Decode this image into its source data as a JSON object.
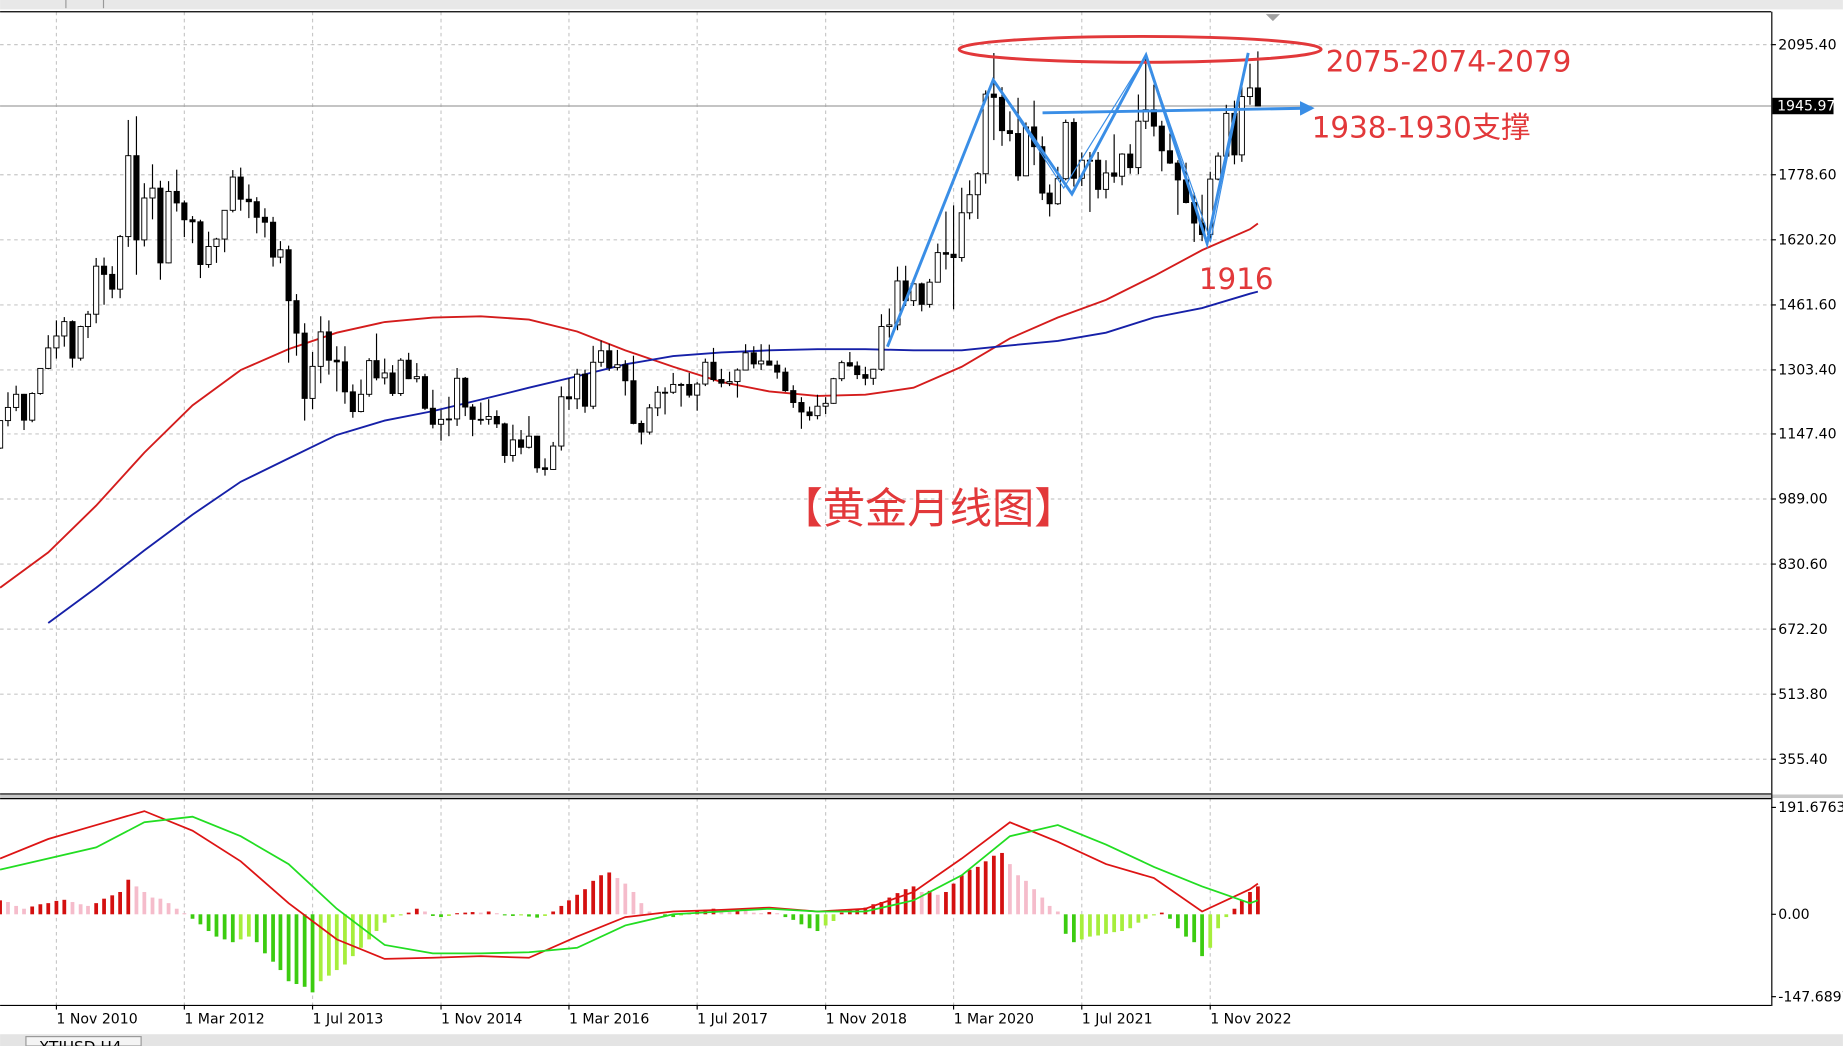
{
  "chart_data": {
    "type": "candlestick",
    "x": [
      "2010-04-01",
      "2010-05-01",
      "2010-06-01",
      "2010-07-01",
      "2010-08-01",
      "2010-09-01",
      "2010-10-01",
      "2010-11-01",
      "2010-12-01",
      "2011-01-01",
      "2011-02-01",
      "2011-03-01",
      "2011-04-01",
      "2011-05-01",
      "2011-06-01",
      "2011-07-01",
      "2011-08-01",
      "2011-09-01",
      "2011-10-01",
      "2011-11-01",
      "2011-12-01",
      "2012-01-01",
      "2012-02-01",
      "2012-03-01",
      "2012-04-01",
      "2012-05-01",
      "2012-06-01",
      "2012-07-01",
      "2012-08-01",
      "2012-09-01",
      "2012-10-01",
      "2012-11-01",
      "2012-12-01",
      "2013-01-01",
      "2013-02-01",
      "2013-03-01",
      "2013-04-01",
      "2013-05-01",
      "2013-06-01",
      "2013-07-01",
      "2013-08-01",
      "2013-09-01",
      "2013-10-01",
      "2013-11-01",
      "2013-12-01",
      "2014-01-01",
      "2014-02-01",
      "2014-03-01",
      "2014-04-01",
      "2014-05-01",
      "2014-06-01",
      "2014-07-01",
      "2014-08-01",
      "2014-09-01",
      "2014-10-01",
      "2014-11-01",
      "2014-12-01",
      "2015-01-01",
      "2015-02-01",
      "2015-03-01",
      "2015-04-01",
      "2015-05-01",
      "2015-06-01",
      "2015-07-01",
      "2015-08-01",
      "2015-09-01",
      "2015-10-01",
      "2015-11-01",
      "2015-12-01",
      "2016-01-01",
      "2016-02-01",
      "2016-03-01",
      "2016-04-01",
      "2016-05-01",
      "2016-06-01",
      "2016-07-01",
      "2016-08-01",
      "2016-09-01",
      "2016-10-01",
      "2016-11-01",
      "2016-12-01",
      "2017-01-01",
      "2017-02-01",
      "2017-03-01",
      "2017-04-01",
      "2017-05-01",
      "2017-06-01",
      "2017-07-01",
      "2017-08-01",
      "2017-09-01",
      "2017-10-01",
      "2017-11-01",
      "2017-12-01",
      "2018-01-01",
      "2018-02-01",
      "2018-03-01",
      "2018-04-01",
      "2018-05-01",
      "2018-06-01",
      "2018-07-01",
      "2018-08-01",
      "2018-09-01",
      "2018-10-01",
      "2018-11-01",
      "2018-12-01",
      "2019-01-01",
      "2019-02-01",
      "2019-03-01",
      "2019-04-01",
      "2019-05-01",
      "2019-06-01",
      "2019-07-01",
      "2019-08-01",
      "2019-09-01",
      "2019-10-01",
      "2019-11-01",
      "2019-12-01",
      "2020-01-01",
      "2020-02-01",
      "2020-03-01",
      "2020-04-01",
      "2020-05-01",
      "2020-06-01",
      "2020-07-01",
      "2020-08-01",
      "2020-09-01",
      "2020-10-01",
      "2020-11-01",
      "2020-12-01",
      "2021-01-01",
      "2021-02-01",
      "2021-03-01",
      "2021-04-01",
      "2021-05-01",
      "2021-06-01",
      "2021-07-01",
      "2021-08-01",
      "2021-09-01",
      "2021-10-01",
      "2021-11-01",
      "2021-12-01",
      "2022-01-01",
      "2022-02-01",
      "2022-03-01",
      "2022-04-01",
      "2022-05-01",
      "2022-06-01",
      "2022-07-01",
      "2022-08-01",
      "2022-09-01",
      "2022-10-01",
      "2022-11-01",
      "2022-12-01",
      "2023-01-01",
      "2023-02-01",
      "2023-03-01",
      "2023-04-01",
      "2023-05-01"
    ],
    "open": [
      1113,
      1180,
      1212,
      1244,
      1181,
      1246,
      1307,
      1357,
      1386,
      1421,
      1332,
      1409,
      1439,
      1556,
      1536,
      1500,
      1628,
      1825,
      1620,
      1722,
      1746,
      1564,
      1738,
      1710,
      1669,
      1664,
      1560,
      1604,
      1622,
      1692,
      1773,
      1719,
      1713,
      1675,
      1663,
      1578,
      1596,
      1472,
      1393,
      1234,
      1312,
      1396,
      1327,
      1323,
      1250,
      1202,
      1244,
      1326,
      1284,
      1296,
      1246,
      1327,
      1282,
      1287,
      1210,
      1171,
      1183,
      1184,
      1283,
      1213,
      1183,
      1183,
      1190,
      1172,
      1095,
      1133,
      1115,
      1142,
      1065,
      1061,
      1118,
      1238,
      1233,
      1293,
      1215,
      1322,
      1350,
      1309,
      1316,
      1277,
      1173,
      1152,
      1211,
      1249,
      1249,
      1268,
      1268,
      1242,
      1269,
      1322,
      1280,
      1271,
      1275,
      1303,
      1345,
      1318,
      1325,
      1315,
      1298,
      1253,
      1224,
      1201,
      1192,
      1215,
      1222,
      1282,
      1321,
      1313,
      1292,
      1283,
      1305,
      1409,
      1413,
      1520,
      1472,
      1513,
      1463,
      1517,
      1589,
      1585,
      1577,
      1686,
      1730,
      1781,
      1975,
      1967,
      1886,
      1879,
      1776,
      1895,
      1847,
      1734,
      1708,
      1769,
      1906,
      1770,
      1814,
      1814,
      1743,
      1783,
      1775,
      1829,
      1796,
      1909,
      1937,
      1897,
      1837,
      1807,
      1766,
      1711,
      1661,
      1633,
      1768,
      1824,
      1928,
      1827,
      1969,
      1990
    ],
    "high": [
      1180,
      1249,
      1265,
      1245,
      1249,
      1308,
      1388,
      1424,
      1432,
      1424,
      1411,
      1447,
      1576,
      1577,
      1556,
      1632,
      1912,
      1921,
      1758,
      1804,
      1764,
      1763,
      1791,
      1716,
      1678,
      1669,
      1640,
      1625,
      1692,
      1790,
      1796,
      1755,
      1724,
      1697,
      1676,
      1617,
      1606,
      1488,
      1417,
      1347,
      1434,
      1424,
      1361,
      1361,
      1268,
      1280,
      1332,
      1392,
      1331,
      1315,
      1332,
      1345,
      1320,
      1294,
      1255,
      1206,
      1238,
      1308,
      1286,
      1220,
      1224,
      1232,
      1205,
      1175,
      1170,
      1157,
      1191,
      1143,
      1088,
      1128,
      1263,
      1283,
      1306,
      1304,
      1362,
      1375,
      1367,
      1352,
      1327,
      1338,
      1180,
      1220,
      1264,
      1261,
      1296,
      1272,
      1296,
      1274,
      1331,
      1357,
      1306,
      1299,
      1307,
      1366,
      1361,
      1366,
      1365,
      1326,
      1309,
      1266,
      1237,
      1214,
      1243,
      1237,
      1284,
      1326,
      1347,
      1324,
      1311,
      1306,
      1439,
      1453,
      1555,
      1557,
      1517,
      1516,
      1525,
      1611,
      1689,
      1704,
      1747,
      1765,
      1785,
      1984,
      2075,
      1992,
      1933,
      1966,
      1906,
      1959,
      1872,
      1755,
      1798,
      1913,
      1916,
      1833,
      1834,
      1834,
      1814,
      1877,
      1831,
      1853,
      1974,
      2070,
      1998,
      1910,
      1879,
      1814,
      1808,
      1735,
      1730,
      1786,
      1833,
      1949,
      1959,
      2009,
      2049,
      2079
    ],
    "low": [
      1111,
      1166,
      1203,
      1157,
      1176,
      1243,
      1305,
      1331,
      1360,
      1309,
      1326,
      1381,
      1417,
      1462,
      1478,
      1478,
      1603,
      1535,
      1604,
      1670,
      1523,
      1563,
      1689,
      1627,
      1612,
      1527,
      1552,
      1564,
      1590,
      1687,
      1691,
      1673,
      1636,
      1626,
      1555,
      1563,
      1321,
      1338,
      1180,
      1208,
      1271,
      1292,
      1251,
      1221,
      1187,
      1200,
      1238,
      1278,
      1268,
      1240,
      1240,
      1281,
      1273,
      1206,
      1161,
      1131,
      1142,
      1167,
      1191,
      1142,
      1170,
      1170,
      1162,
      1077,
      1080,
      1098,
      1112,
      1053,
      1046,
      1060,
      1107,
      1206,
      1208,
      1199,
      1208,
      1311,
      1301,
      1302,
      1241,
      1171,
      1122,
      1146,
      1191,
      1195,
      1245,
      1214,
      1236,
      1204,
      1264,
      1275,
      1261,
      1264,
      1236,
      1302,
      1307,
      1303,
      1314,
      1282,
      1250,
      1211,
      1160,
      1180,
      1183,
      1196,
      1221,
      1276,
      1311,
      1281,
      1266,
      1267,
      1301,
      1382,
      1400,
      1459,
      1459,
      1446,
      1455,
      1517,
      1548,
      1451,
      1567,
      1670,
      1671,
      1757,
      1863,
      1849,
      1860,
      1764,
      1775,
      1802,
      1717,
      1677,
      1705,
      1765,
      1750,
      1751,
      1688,
      1721,
      1721,
      1759,
      1753,
      1781,
      1780,
      1890,
      1872,
      1787,
      1805,
      1681,
      1709,
      1615,
      1617,
      1616,
      1765,
      1823,
      1804,
      1810,
      1949,
      1945
    ],
    "close": [
      1180,
      1212,
      1244,
      1181,
      1246,
      1307,
      1357,
      1386,
      1421,
      1332,
      1409,
      1439,
      1556,
      1536,
      1500,
      1628,
      1825,
      1620,
      1722,
      1746,
      1564,
      1738,
      1710,
      1669,
      1664,
      1560,
      1604,
      1622,
      1692,
      1773,
      1719,
      1713,
      1675,
      1663,
      1578,
      1596,
      1472,
      1393,
      1234,
      1312,
      1396,
      1327,
      1323,
      1250,
      1202,
      1244,
      1326,
      1284,
      1296,
      1246,
      1327,
      1282,
      1287,
      1210,
      1171,
      1183,
      1184,
      1283,
      1213,
      1183,
      1183,
      1190,
      1172,
      1095,
      1133,
      1115,
      1142,
      1065,
      1061,
      1118,
      1238,
      1233,
      1293,
      1215,
      1322,
      1350,
      1309,
      1316,
      1277,
      1173,
      1152,
      1211,
      1249,
      1249,
      1268,
      1268,
      1242,
      1269,
      1322,
      1280,
      1271,
      1275,
      1303,
      1345,
      1318,
      1325,
      1315,
      1298,
      1253,
      1224,
      1201,
      1192,
      1215,
      1222,
      1282,
      1321,
      1313,
      1292,
      1283,
      1305,
      1409,
      1413,
      1520,
      1472,
      1513,
      1463,
      1517,
      1589,
      1585,
      1577,
      1686,
      1730,
      1781,
      1975,
      1967,
      1886,
      1879,
      1776,
      1895,
      1847,
      1734,
      1708,
      1769,
      1906,
      1770,
      1814,
      1814,
      1743,
      1783,
      1775,
      1829,
      1796,
      1909,
      1937,
      1897,
      1837,
      1807,
      1766,
      1711,
      1661,
      1633,
      1768,
      1824,
      1928,
      1827,
      1969,
      1990,
      1946
    ],
    "xlim": [
      "2010-04-01",
      "2028-09-01"
    ],
    "xticks": [
      {
        "value": "2010-11-01",
        "label": "1 Nov 2010"
      },
      {
        "value": "2012-03-01",
        "label": "1 Mar 2012"
      },
      {
        "value": "2013-07-01",
        "label": "1 Jul 2013"
      },
      {
        "value": "2014-11-01",
        "label": "1 Nov 2014"
      },
      {
        "value": "2016-03-01",
        "label": "1 Mar 2016"
      },
      {
        "value": "2017-07-01",
        "label": "1 Jul 2017"
      },
      {
        "value": "2018-11-01",
        "label": "1 Nov 2018"
      },
      {
        "value": "2020-03-01",
        "label": "1 Mar 2020"
      },
      {
        "value": "2021-07-01",
        "label": "1 Jul 2021"
      },
      {
        "value": "2022-11-01",
        "label": "1 Nov 2022"
      }
    ],
    "ylim": [
      272.4,
      2175.5
    ],
    "yticks": [
      {
        "value": 2095.4,
        "label": "2095.40"
      },
      {
        "value": 1778.6,
        "label": "1778.60"
      },
      {
        "value": 1620.2,
        "label": "1620.20"
      },
      {
        "value": 1461.6,
        "label": "1461.60"
      },
      {
        "value": 1303.4,
        "label": "1303.40"
      },
      {
        "value": 1147.4,
        "label": "1147.40"
      },
      {
        "value": 989,
        "label": "989.00"
      },
      {
        "value": 830.6,
        "label": "830.60"
      },
      {
        "value": 672.2,
        "label": "672.20"
      },
      {
        "value": 513.8,
        "label": "513.80"
      },
      {
        "value": 355.4,
        "label": "355.40"
      }
    ],
    "grid": true,
    "last_price": {
      "value": 1945.97,
      "label": "1945.97"
    },
    "bull_color": "#ffffff",
    "bear_color": "#000000",
    "overlay_x": [
      "2010-04-01",
      "2010-10-01",
      "2011-04-01",
      "2011-10-01",
      "2012-04-01",
      "2012-10-01",
      "2013-04-01",
      "2013-10-01",
      "2014-04-01",
      "2014-10-01",
      "2015-04-01",
      "2015-10-01",
      "2016-04-01",
      "2016-10-01",
      "2017-04-01",
      "2017-10-01",
      "2018-04-01",
      "2018-10-01",
      "2019-04-01",
      "2019-10-01",
      "2020-04-01",
      "2020-10-01",
      "2021-04-01",
      "2021-10-01",
      "2022-04-01",
      "2022-10-01",
      "2023-04-01",
      "2023-05-01"
    ],
    "overlays": [
      {
        "color": "#d41c1c",
        "values": [
          773,
          859,
          973,
          1102,
          1217,
          1303,
          1354,
          1394,
          1420,
          1431,
          1434,
          1426,
          1397,
          1351,
          1311,
          1274,
          1251,
          1240,
          1243,
          1260,
          1311,
          1380,
          1431,
          1474,
          1532,
          1595,
          1646,
          1660
        ]
      },
      {
        "color": "#1620a8",
        "values": [
          null,
          687,
          773,
          864,
          951,
          1031,
          1088,
          1145,
          1180,
          1203,
          1231,
          1260,
          1288,
          1317,
          1337,
          1346,
          1351,
          1354,
          1354,
          1351,
          1351,
          1363,
          1374,
          1394,
          1431,
          1454,
          1489,
          1494
        ]
      }
    ],
    "annotations": [
      "2075-2074-2079",
      "1938-1930支撑",
      "1916",
      "【黄金月线图】"
    ],
    "macd": {
      "ylim": [
        -162.4,
        208.5
      ],
      "yticks": [
        191.6763,
        {
          "value": 0,
          "label": "0.00"
        },
        -147.6897
      ],
      "histogram": [
        25,
        22,
        15,
        10,
        14,
        18,
        20,
        24,
        26,
        22,
        18,
        15,
        20,
        28,
        34,
        40,
        62,
        50,
        40,
        30,
        28,
        20,
        10,
        2,
        -8,
        -18,
        -30,
        -40,
        -45,
        -50,
        -45,
        -40,
        -50,
        -70,
        -85,
        -100,
        -120,
        -125,
        -130,
        -140,
        -120,
        -110,
        -100,
        -90,
        -75,
        -60,
        -45,
        -30,
        -15,
        -5,
        -2,
        3,
        10,
        5,
        -3,
        -5,
        -3,
        2,
        3,
        4,
        3,
        5,
        2,
        -2,
        -3,
        -2,
        -4,
        -6,
        -3,
        5,
        15,
        25,
        35,
        45,
        60,
        70,
        75,
        65,
        55,
        40,
        20,
        5,
        2,
        -3,
        -5,
        -2,
        3,
        5,
        8,
        10,
        6,
        4,
        8,
        6,
        3,
        2,
        4,
        2,
        -5,
        -10,
        -18,
        -25,
        -30,
        -20,
        -12,
        3,
        8,
        10,
        12,
        18,
        22,
        30,
        38,
        45,
        50,
        40,
        42,
        35,
        40,
        55,
        70,
        80,
        85,
        95,
        105,
        110,
        90,
        70,
        60,
        45,
        30,
        15,
        5,
        -35,
        -50,
        -45,
        -40,
        -38,
        -35,
        -32,
        -30,
        -25,
        -15,
        -8,
        -2,
        3,
        -8,
        -25,
        -40,
        -50,
        -75,
        -60,
        -25,
        -5,
        10,
        25,
        40,
        50
      ],
      "histogram_colors": {
        "positive_rising": "#d41010",
        "positive_falling": "#f5bccb",
        "negative_falling": "#3ccc10",
        "negative_rising": "#a6ee3c"
      },
      "lines": [
        {
          "color": "#dd1414",
          "values": [
            100,
            135,
            160,
            185,
            150,
            95,
            20,
            -45,
            -80,
            -78,
            -75,
            -78,
            -40,
            -5,
            5,
            8,
            12,
            5,
            10,
            40,
            100,
            165,
            130,
            90,
            65,
            5,
            45,
            55
          ]
        },
        {
          "color": "#22dd22",
          "values": [
            80,
            100,
            120,
            165,
            175,
            140,
            90,
            10,
            -55,
            -70,
            -70,
            -68,
            -60,
            -20,
            0,
            5,
            10,
            5,
            5,
            25,
            70,
            140,
            160,
            125,
            85,
            50,
            20,
            25
          ]
        }
      ]
    },
    "bottom_tab": "XTIUSD,H4"
  }
}
